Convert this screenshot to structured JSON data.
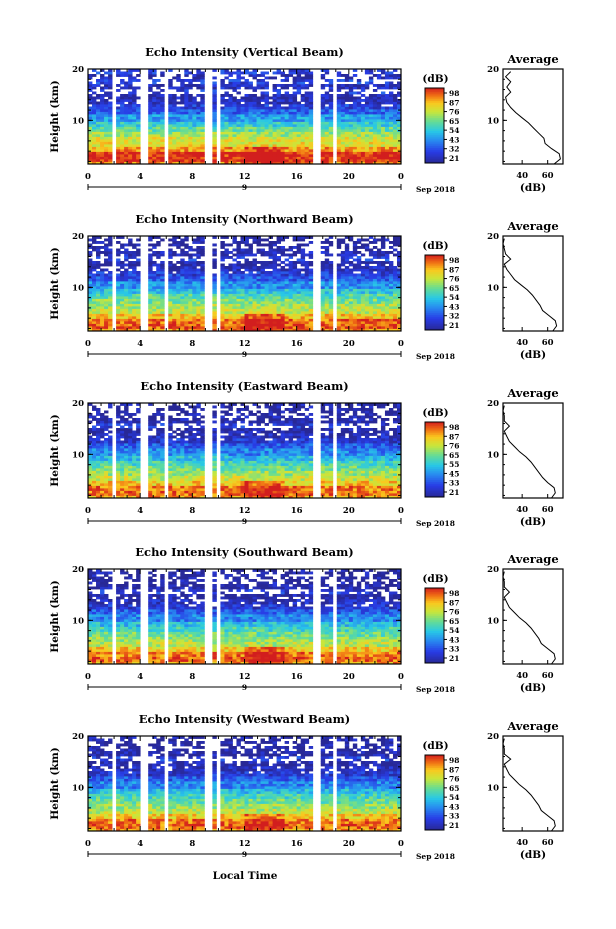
{
  "figure": {
    "x_axis_label": "Local Time",
    "date_label": "Sep 2018",
    "day_label": "9"
  },
  "chart_data": [
    {
      "type": "heatmap",
      "title": "Echo Intensity (Vertical Beam)",
      "ylabel": "Height (km)",
      "xlabel": "Local Time",
      "x_ticks": [
        "0",
        "4",
        "8",
        "12",
        "16",
        "20",
        "0"
      ],
      "y_ticks": [
        "20",
        "10"
      ],
      "xlim": [
        0,
        24
      ],
      "ylim": [
        1.5,
        20
      ],
      "colorbar": {
        "label": "(dB)",
        "ticks": [
          "98",
          "87",
          "76",
          "65",
          "54",
          "43",
          "32",
          "21"
        ]
      },
      "data_gaps_hours": [
        [
          1.8,
          2.2
        ],
        [
          4.1,
          4.6
        ],
        [
          5.8,
          6.1
        ],
        [
          9.0,
          9.4
        ],
        [
          9.8,
          10.0
        ],
        [
          17.3,
          17.8
        ],
        [
          18.7,
          19.1
        ]
      ],
      "average_profile": {
        "title": "Average",
        "xlabel": "(dB)",
        "x_ticks": [
          "40",
          "60"
        ],
        "y_ticks": [
          "20",
          "10"
        ],
        "height_km": [
          1.5,
          2.5,
          3.5,
          4.5,
          5.5,
          6.5,
          7.5,
          8.5,
          9.5,
          10.5,
          11.5,
          12.5,
          13.5,
          14.5,
          15.5,
          16.5,
          17.5,
          18.5,
          19.5
        ],
        "db": [
          65,
          70,
          69,
          63,
          58,
          57,
          53,
          49,
          45,
          40,
          35,
          31,
          28,
          27,
          31,
          28,
          31,
          27,
          31
        ]
      }
    },
    {
      "type": "heatmap",
      "title": "Echo Intensity (Northward Beam)",
      "ylabel": "Height (km)",
      "xlabel": "Local Time",
      "x_ticks": [
        "0",
        "4",
        "8",
        "12",
        "16",
        "20",
        "0"
      ],
      "y_ticks": [
        "20",
        "10"
      ],
      "xlim": [
        0,
        24
      ],
      "ylim": [
        1.5,
        20
      ],
      "colorbar": {
        "label": "(dB)",
        "ticks": [
          "98",
          "87",
          "76",
          "65",
          "54",
          "43",
          "32",
          "21"
        ]
      },
      "data_gaps_hours": [
        [
          1.8,
          2.2
        ],
        [
          4.1,
          4.6
        ],
        [
          5.8,
          6.1
        ],
        [
          9.0,
          9.4
        ],
        [
          9.8,
          10.0
        ],
        [
          17.3,
          17.8
        ],
        [
          18.7,
          19.1
        ]
      ],
      "average_profile": {
        "title": "Average",
        "xlabel": "(dB)",
        "x_ticks": [
          "40",
          "60"
        ],
        "y_ticks": [
          "20",
          "10"
        ],
        "height_km": [
          1.5,
          2.5,
          3.5,
          4.5,
          5.5,
          6.5,
          7.5,
          8.5,
          9.5,
          10.5,
          11.5,
          12.5,
          13.5,
          14.5,
          15.5,
          16.5,
          17.5,
          18.5,
          19.5
        ],
        "db": [
          64,
          67,
          66,
          61,
          56,
          54,
          51,
          48,
          44,
          39,
          34,
          31,
          28,
          26,
          31,
          27,
          26,
          25,
          26
        ]
      }
    },
    {
      "type": "heatmap",
      "title": "Echo Intensity (Eastward Beam)",
      "ylabel": "Height (km)",
      "xlabel": "Local Time",
      "x_ticks": [
        "0",
        "4",
        "8",
        "12",
        "16",
        "20",
        "0"
      ],
      "y_ticks": [
        "20",
        "10"
      ],
      "xlim": [
        0,
        24
      ],
      "ylim": [
        1.5,
        20
      ],
      "colorbar": {
        "label": "(dB)",
        "ticks": [
          "98",
          "87",
          "76",
          "65",
          "55",
          "45",
          "33",
          "21"
        ]
      },
      "data_gaps_hours": [
        [
          1.8,
          2.2
        ],
        [
          4.1,
          4.6
        ],
        [
          5.8,
          6.1
        ],
        [
          9.0,
          9.4
        ],
        [
          9.8,
          10.0
        ],
        [
          17.3,
          17.8
        ],
        [
          18.7,
          19.1
        ]
      ],
      "average_profile": {
        "title": "Average",
        "xlabel": "(dB)",
        "x_ticks": [
          "40",
          "60"
        ],
        "y_ticks": [
          "20",
          "10"
        ],
        "height_km": [
          1.5,
          2.5,
          3.5,
          4.5,
          5.5,
          6.5,
          7.5,
          8.5,
          9.5,
          10.5,
          11.5,
          12.5,
          13.5,
          14.5,
          15.5,
          16.5,
          17.5,
          18.5,
          19.5
        ],
        "db": [
          63,
          66,
          65,
          60,
          56,
          53,
          50,
          47,
          43,
          38,
          34,
          30,
          28,
          26,
          30,
          26,
          26,
          25,
          26
        ]
      }
    },
    {
      "type": "heatmap",
      "title": "Echo Intensity (Southward Beam)",
      "ylabel": "Height (km)",
      "xlabel": "Local Time",
      "x_ticks": [
        "0",
        "4",
        "8",
        "12",
        "16",
        "20",
        "0"
      ],
      "y_ticks": [
        "20",
        "10"
      ],
      "xlim": [
        0,
        24
      ],
      "ylim": [
        1.5,
        20
      ],
      "colorbar": {
        "label": "(dB)",
        "ticks": [
          "98",
          "87",
          "76",
          "65",
          "54",
          "43",
          "33",
          "21"
        ]
      },
      "data_gaps_hours": [
        [
          1.8,
          2.2
        ],
        [
          4.1,
          4.6
        ],
        [
          5.8,
          6.1
        ],
        [
          9.0,
          9.4
        ],
        [
          9.8,
          10.0
        ],
        [
          17.3,
          17.8
        ],
        [
          18.7,
          19.1
        ]
      ],
      "average_profile": {
        "title": "Average",
        "xlabel": "(dB)",
        "x_ticks": [
          "40",
          "60"
        ],
        "y_ticks": [
          "20",
          "10"
        ],
        "height_km": [
          1.5,
          2.5,
          3.5,
          4.5,
          5.5,
          6.5,
          7.5,
          8.5,
          9.5,
          10.5,
          11.5,
          12.5,
          13.5,
          14.5,
          15.5,
          16.5,
          17.5,
          18.5,
          19.5
        ],
        "db": [
          63,
          66,
          65,
          60,
          55,
          53,
          50,
          47,
          43,
          38,
          34,
          30,
          28,
          26,
          30,
          26,
          26,
          25,
          26
        ]
      }
    },
    {
      "type": "heatmap",
      "title": "Echo Intensity (Westward Beam)",
      "ylabel": "Height (km)",
      "xlabel": "Local Time",
      "x_ticks": [
        "0",
        "4",
        "8",
        "12",
        "16",
        "20",
        "0"
      ],
      "y_ticks": [
        "20",
        "10"
      ],
      "xlim": [
        0,
        24
      ],
      "ylim": [
        1.5,
        20
      ],
      "colorbar": {
        "label": "(dB)",
        "ticks": [
          "98",
          "87",
          "76",
          "65",
          "54",
          "43",
          "33",
          "21"
        ]
      },
      "data_gaps_hours": [
        [
          1.8,
          2.2
        ],
        [
          4.1,
          4.6
        ],
        [
          5.8,
          6.1
        ],
        [
          9.0,
          9.4
        ],
        [
          9.8,
          10.0
        ],
        [
          17.3,
          17.8
        ],
        [
          18.7,
          19.1
        ]
      ],
      "average_profile": {
        "title": "Average",
        "xlabel": "(dB)",
        "x_ticks": [
          "40",
          "60"
        ],
        "y_ticks": [
          "20",
          "10"
        ],
        "height_km": [
          1.5,
          2.5,
          3.5,
          4.5,
          5.5,
          6.5,
          7.5,
          8.5,
          9.5,
          10.5,
          11.5,
          12.5,
          13.5,
          14.5,
          15.5,
          16.5,
          17.5,
          18.5,
          19.5
        ],
        "db": [
          63,
          66,
          65,
          60,
          55,
          53,
          50,
          47,
          43,
          38,
          34,
          30,
          28,
          26,
          31,
          26,
          26,
          25,
          26
        ]
      }
    }
  ]
}
